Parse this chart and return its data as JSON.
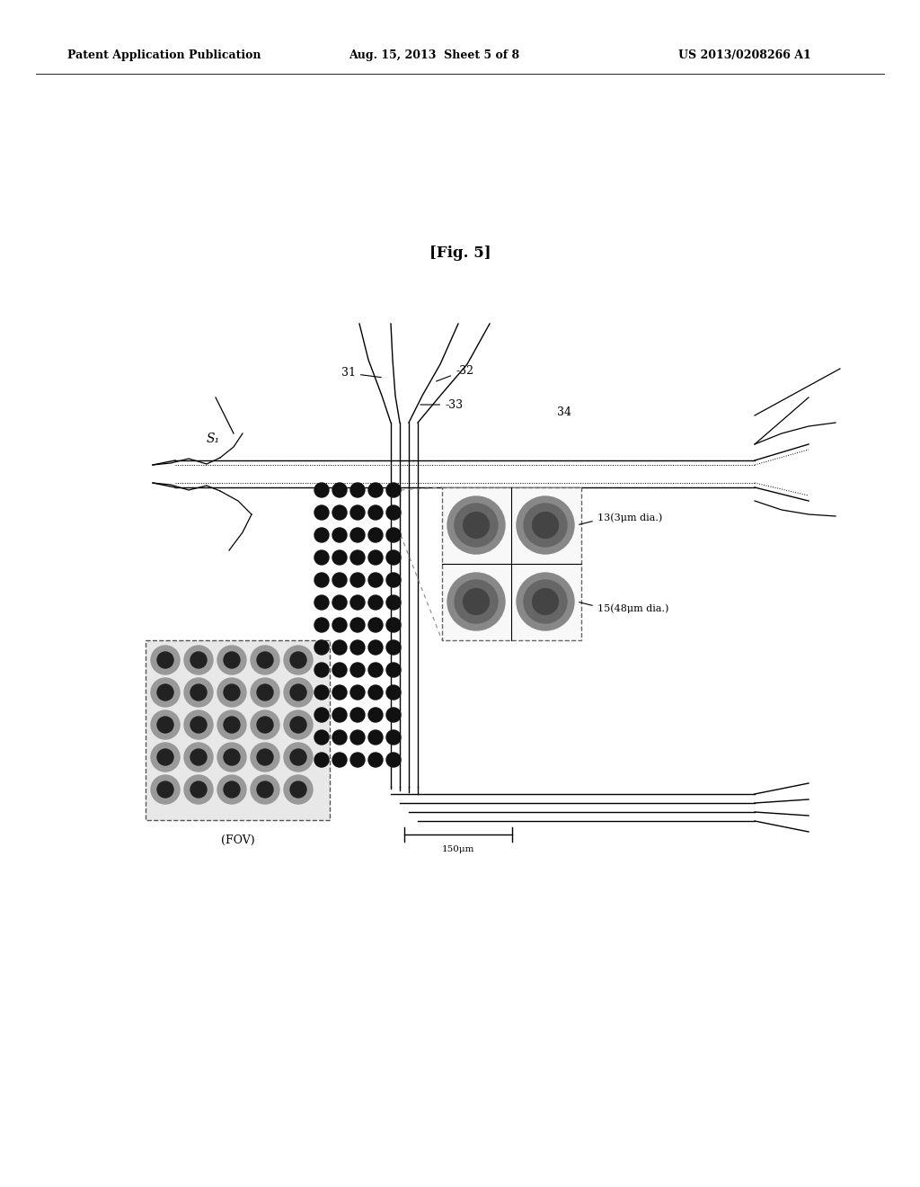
{
  "title_text": "[Fig. 5]",
  "header_left": "Patent Application Publication",
  "header_mid": "Aug. 15, 2013  Sheet 5 of 8",
  "header_right": "US 2013/0208266 A1",
  "bg_color": "#ffffff",
  "label_13": "13(3μm dia.)",
  "label_15": "15(48μm dia.)",
  "label_50um": "150μm",
  "label_fov": "(FOV)",
  "label_S1": "S₁",
  "label_31": "31",
  "label_32": "-32",
  "label_33": "-33",
  "label_34": "34"
}
